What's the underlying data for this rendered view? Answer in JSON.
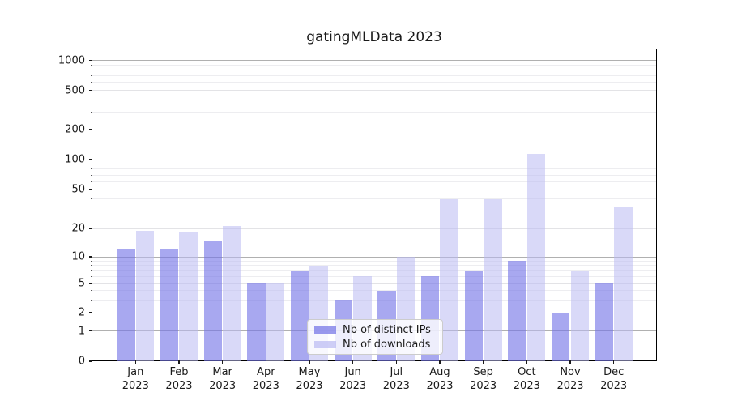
{
  "chart_data": {
    "type": "bar",
    "title": "gatingMLData 2023",
    "year_label": "2023",
    "categories": [
      "Jan",
      "Feb",
      "Mar",
      "Apr",
      "May",
      "Jun",
      "Jul",
      "Aug",
      "Sep",
      "Oct",
      "Nov",
      "Dec"
    ],
    "series": [
      {
        "name": "Nb of distinct IPs",
        "color": "#7373e6",
        "alpha": 0.62,
        "values": [
          12,
          12,
          15,
          5,
          7,
          3,
          4,
          6,
          7,
          9,
          2,
          5
        ]
      },
      {
        "name": "Nb of downloads",
        "color": "#b9b9f2",
        "alpha": 0.55,
        "values": [
          19,
          18,
          21,
          5,
          8,
          6,
          10,
          40,
          40,
          115,
          7,
          33
        ]
      }
    ],
    "xlabel": "",
    "ylabel": "",
    "y_scale": "symlog",
    "y_ticks": [
      0,
      1,
      2,
      5,
      10,
      20,
      50,
      100,
      200,
      500,
      1000
    ],
    "y_minor_ticks": [
      3,
      4,
      6,
      7,
      8,
      9,
      30,
      40,
      60,
      70,
      80,
      90,
      300,
      400,
      600,
      700,
      800,
      900
    ],
    "ylim": [
      0,
      1400
    ],
    "grid": "on",
    "legend_position": "lower center"
  }
}
